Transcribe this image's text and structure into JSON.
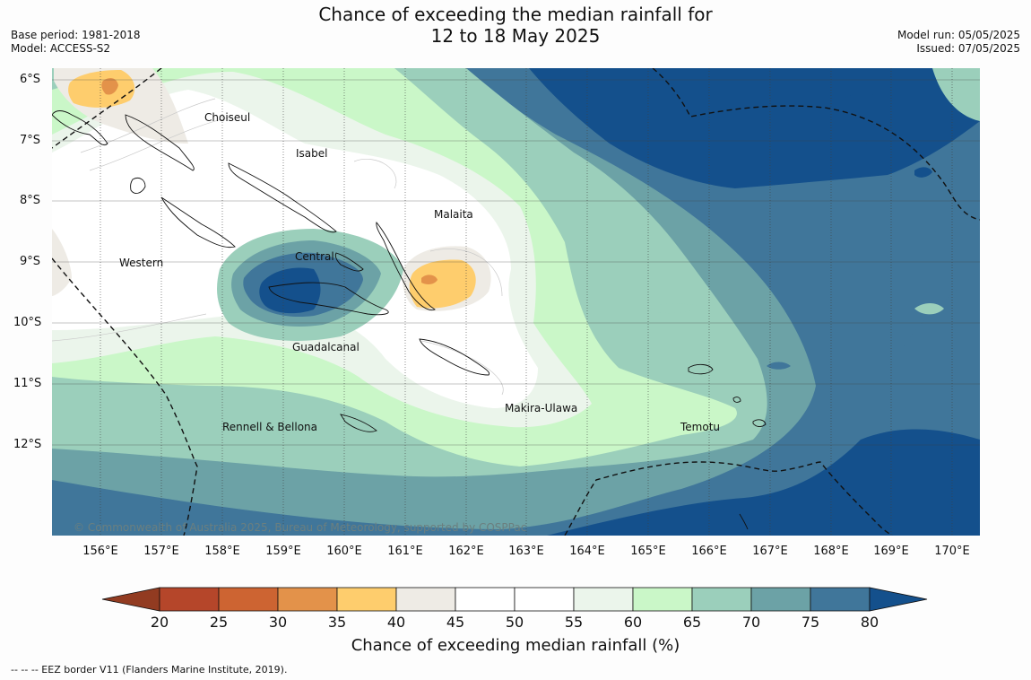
{
  "title": {
    "line1": "Chance of exceeding the median rainfall for",
    "line2": "12 to 18 May 2025"
  },
  "meta": {
    "base_period": "Base period: 1981-2018",
    "model": "Model: ACCESS-S2",
    "model_run": "Model run: 05/05/2025",
    "issued": "Issued: 07/05/2025"
  },
  "latitude_labels": [
    "6°S",
    "7°S",
    "8°S",
    "9°S",
    "10°S",
    "11°S",
    "12°S"
  ],
  "longitude_labels": [
    "156°E",
    "157°E",
    "158°E",
    "159°E",
    "160°E",
    "161°E",
    "162°E",
    "163°E",
    "164°E",
    "165°E",
    "166°E",
    "167°E",
    "168°E",
    "169°E",
    "170°E"
  ],
  "places": [
    "Choiseul",
    "Isabel",
    "Malaita",
    "Central",
    "Western",
    "Guadalcanal",
    "Makira-Ulawa",
    "Temotu",
    "Rennell & Bellona"
  ],
  "copyright": "© Commonwealth of Australia 2025, Bureau of Meteorology, supported by COSPPac",
  "colorbar": {
    "ticks": [
      "20",
      "25",
      "30",
      "35",
      "40",
      "45",
      "50",
      "55",
      "60",
      "65",
      "70",
      "75",
      "80"
    ],
    "colors": [
      "#b5462a",
      "#cd6432",
      "#e3924a",
      "#fecd6d",
      "#eeebe5",
      "#ffffff",
      "#ffffff",
      "#ebf5eb",
      "#caf7c8",
      "#9bcfbb",
      "#6ca2a6",
      "#40769a",
      "#14508c"
    ],
    "label": "Chance of exceeding median rainfall (%)"
  },
  "footnote": "--  --  -- EEZ border V11 (Flanders Marine Institute, 2019)."
}
